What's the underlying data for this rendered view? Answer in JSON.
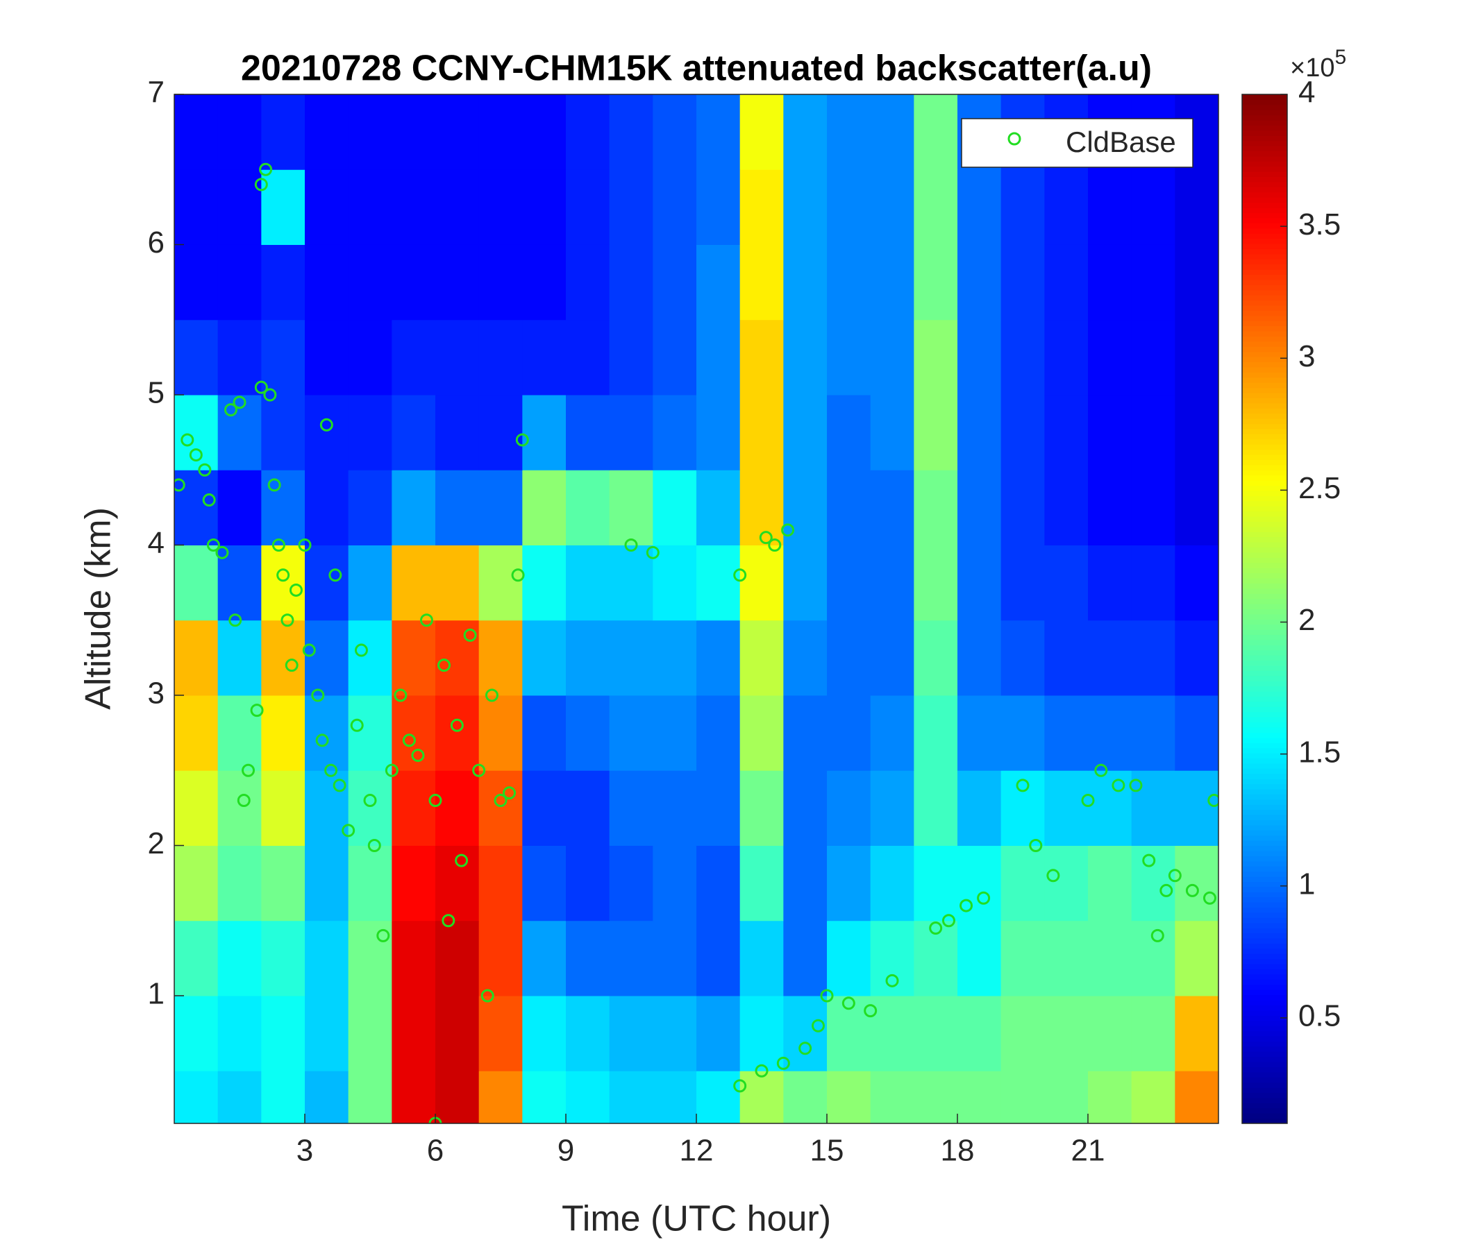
{
  "chart_data": {
    "type": "heatmap",
    "title": "20210728 CCNY-CHM15K attenuated backscatter(a.u)",
    "xlabel": "Time (UTC hour)",
    "ylabel": "Altitude (km)",
    "xlim": [
      0,
      24
    ],
    "ylim": [
      0.15,
      7
    ],
    "xticks": [
      3,
      6,
      9,
      12,
      15,
      18,
      21
    ],
    "yticks": [
      1,
      2,
      3,
      4,
      5,
      6,
      7
    ],
    "colormap": "jet",
    "clim": [
      0.1,
      4
    ],
    "cticks": [
      0.5,
      1,
      1.5,
      2,
      2.5,
      3,
      3.5,
      4
    ],
    "colorbar_scale": {
      "base": "×10",
      "exponent": "5"
    },
    "legend": "upper right",
    "x_edges": [
      0,
      1,
      2,
      3,
      4,
      5,
      6,
      7,
      8,
      9,
      10,
      11,
      12,
      13,
      14,
      15,
      16,
      17,
      18,
      19,
      20,
      21,
      22,
      23,
      24
    ],
    "y_edges": [
      0.15,
      0.5,
      1,
      1.5,
      2,
      2.5,
      3,
      3.5,
      4,
      4.5,
      5,
      5.5,
      6,
      6.5,
      7
    ],
    "z": [
      [
        1.5,
        1.4,
        1.6,
        1.3,
        2.0,
        3.6,
        3.7,
        3.0,
        1.6,
        1.5,
        1.4,
        1.4,
        1.5,
        2.2,
        2.0,
        2.1,
        2.0,
        2.0,
        2.0,
        2.0,
        2.0,
        2.1,
        2.2,
        3.0
      ],
      [
        1.6,
        1.5,
        1.6,
        1.4,
        2.0,
        3.6,
        3.7,
        3.2,
        1.5,
        1.4,
        1.3,
        1.3,
        1.2,
        1.5,
        1.4,
        1.9,
        1.9,
        1.9,
        1.9,
        2.0,
        2.0,
        2.0,
        2.0,
        2.8
      ],
      [
        1.8,
        1.6,
        1.7,
        1.4,
        2.0,
        3.6,
        3.7,
        3.3,
        1.2,
        1.0,
        1.0,
        1.0,
        0.9,
        1.4,
        1.0,
        1.5,
        1.7,
        1.8,
        1.6,
        1.9,
        1.9,
        1.9,
        1.9,
        2.2
      ],
      [
        2.2,
        1.9,
        2.0,
        1.3,
        1.9,
        3.5,
        3.6,
        3.3,
        0.9,
        0.8,
        0.9,
        1.0,
        0.9,
        1.8,
        1.0,
        1.2,
        1.4,
        1.6,
        1.6,
        1.8,
        1.8,
        1.9,
        1.8,
        2.0
      ],
      [
        2.4,
        2.0,
        2.4,
        1.3,
        1.8,
        3.4,
        3.5,
        3.2,
        0.8,
        0.8,
        1.0,
        1.0,
        1.0,
        2.0,
        1.0,
        1.1,
        1.2,
        1.8,
        1.3,
        1.5,
        1.4,
        1.4,
        1.3,
        1.3
      ],
      [
        2.7,
        1.9,
        2.6,
        1.2,
        1.7,
        3.3,
        3.4,
        3.0,
        0.9,
        1.0,
        1.1,
        1.1,
        1.0,
        2.2,
        1.0,
        1.0,
        1.1,
        1.8,
        1.1,
        1.1,
        1.0,
        1.0,
        1.0,
        0.9
      ],
      [
        2.8,
        1.4,
        2.8,
        1.0,
        1.5,
        3.2,
        3.3,
        2.9,
        1.3,
        1.2,
        1.2,
        1.2,
        1.1,
        2.3,
        1.1,
        1.0,
        1.0,
        1.9,
        1.0,
        0.9,
        0.8,
        0.8,
        0.8,
        0.7
      ],
      [
        1.9,
        0.9,
        2.5,
        0.8,
        1.2,
        2.8,
        2.8,
        2.2,
        1.6,
        1.4,
        1.4,
        1.5,
        1.6,
        2.5,
        1.2,
        1.0,
        1.0,
        2.0,
        1.0,
        0.8,
        0.8,
        0.7,
        0.7,
        0.6
      ],
      [
        0.8,
        0.6,
        1.0,
        0.7,
        0.8,
        1.2,
        1.0,
        1.0,
        2.1,
        1.9,
        2.0,
        1.6,
        1.3,
        2.7,
        1.2,
        1.0,
        1.0,
        2.0,
        1.0,
        0.8,
        0.7,
        0.6,
        0.6,
        0.5
      ],
      [
        1.6,
        1.0,
        0.8,
        0.7,
        0.7,
        0.8,
        0.7,
        0.7,
        1.2,
        0.9,
        0.9,
        1.0,
        1.1,
        2.7,
        1.2,
        1.0,
        1.1,
        2.1,
        1.0,
        0.8,
        0.7,
        0.6,
        0.6,
        0.5
      ],
      [
        0.8,
        0.7,
        0.8,
        0.6,
        0.6,
        0.7,
        0.7,
        0.7,
        0.7,
        0.7,
        0.8,
        0.9,
        1.1,
        2.7,
        1.2,
        1.1,
        1.1,
        2.1,
        1.0,
        0.8,
        0.7,
        0.6,
        0.6,
        0.5
      ],
      [
        0.6,
        0.6,
        0.7,
        0.6,
        0.6,
        0.6,
        0.6,
        0.6,
        0.6,
        0.7,
        0.8,
        0.9,
        1.1,
        2.6,
        1.2,
        1.1,
        1.1,
        2.0,
        1.0,
        0.8,
        0.7,
        0.6,
        0.6,
        0.5
      ],
      [
        0.6,
        0.6,
        1.5,
        0.6,
        0.6,
        0.6,
        0.6,
        0.6,
        0.6,
        0.7,
        0.8,
        0.9,
        1.0,
        2.6,
        1.2,
        1.1,
        1.1,
        2.0,
        1.0,
        0.8,
        0.7,
        0.6,
        0.6,
        0.5
      ],
      [
        0.6,
        0.6,
        0.7,
        0.6,
        0.6,
        0.6,
        0.6,
        0.6,
        0.6,
        0.7,
        0.8,
        0.9,
        1.0,
        2.5,
        1.2,
        1.1,
        1.1,
        2.0,
        1.0,
        0.8,
        0.7,
        0.6,
        0.6,
        0.5
      ]
    ],
    "series": [
      {
        "name": "CldBase",
        "type": "scatter",
        "color": "#22dd22",
        "x": [
          0.1,
          0.3,
          0.5,
          0.7,
          0.8,
          0.9,
          1.1,
          1.3,
          1.5,
          1.4,
          1.6,
          1.7,
          1.9,
          2.0,
          2.1,
          2.0,
          2.2,
          2.3,
          2.4,
          2.5,
          2.6,
          2.7,
          2.8,
          3.0,
          3.1,
          3.3,
          3.4,
          3.5,
          3.6,
          3.7,
          3.8,
          4.0,
          4.2,
          4.3,
          4.5,
          4.6,
          4.8,
          5.0,
          5.2,
          5.4,
          5.6,
          5.8,
          6.0,
          6.0,
          6.2,
          6.3,
          6.5,
          6.6,
          6.8,
          7.0,
          7.2,
          7.3,
          7.5,
          7.7,
          7.9,
          8.0,
          10.5,
          11.0,
          13.0,
          13.6,
          13.8,
          14.1,
          13.0,
          13.5,
          14.0,
          14.5,
          14.8,
          15.0,
          15.5,
          16.0,
          16.5,
          17.5,
          17.8,
          18.2,
          18.6,
          19.5,
          19.8,
          20.2,
          21.0,
          21.3,
          21.7,
          22.1,
          22.4,
          22.6,
          22.8,
          23.0,
          23.4,
          23.8,
          23.9
        ],
        "y": [
          4.4,
          4.7,
          4.6,
          4.5,
          4.3,
          4.0,
          3.95,
          4.9,
          4.95,
          3.5,
          2.3,
          2.5,
          2.9,
          6.4,
          6.5,
          5.05,
          5.0,
          4.4,
          4.0,
          3.8,
          3.5,
          3.2,
          3.7,
          4.0,
          3.3,
          3.0,
          2.7,
          4.8,
          2.5,
          3.8,
          2.4,
          2.1,
          2.8,
          3.3,
          2.3,
          2.0,
          1.4,
          2.5,
          3.0,
          2.7,
          2.6,
          3.5,
          2.3,
          0.15,
          3.2,
          1.5,
          2.8,
          1.9,
          3.4,
          2.5,
          1.0,
          3.0,
          2.3,
          2.35,
          3.8,
          4.7,
          4.0,
          3.95,
          3.8,
          4.05,
          4.0,
          4.1,
          0.4,
          0.5,
          0.55,
          0.65,
          0.8,
          1.0,
          0.95,
          0.9,
          1.1,
          1.45,
          1.5,
          1.6,
          1.65,
          2.4,
          2.0,
          1.8,
          2.3,
          2.5,
          2.4,
          2.4,
          1.9,
          1.4,
          1.7,
          1.8,
          1.7,
          1.65,
          2.3
        ]
      }
    ]
  }
}
